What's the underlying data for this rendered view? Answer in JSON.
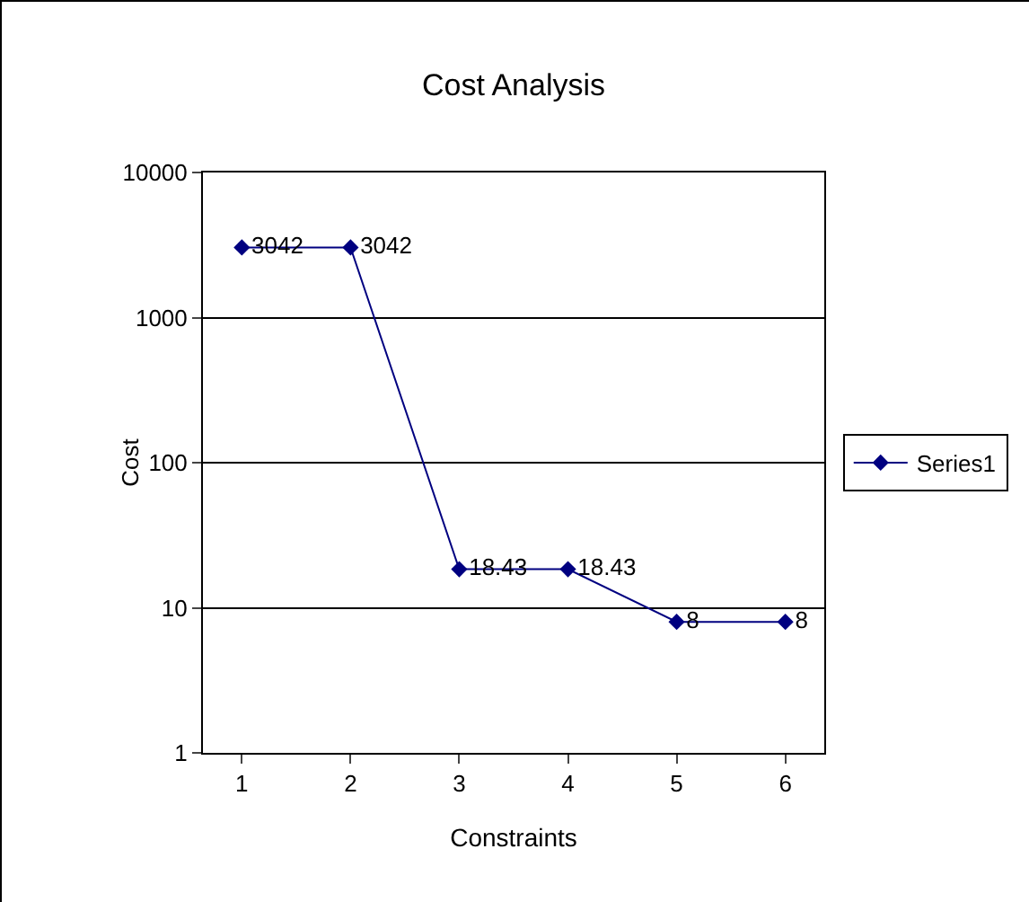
{
  "chart_data": {
    "type": "line",
    "title": "Cost Analysis",
    "xlabel": "Constraints",
    "ylabel": "Cost",
    "categories": [
      "1",
      "2",
      "3",
      "4",
      "5",
      "6"
    ],
    "series": [
      {
        "name": "Series1",
        "color": "#000080",
        "values": [
          3042,
          3042,
          18.43,
          18.43,
          8,
          8
        ]
      }
    ],
    "ylim": [
      1,
      10000
    ],
    "yticks": [
      1,
      10,
      100,
      1000,
      10000
    ],
    "log": true,
    "grid": "y",
    "legend": "right",
    "marker": "diamond",
    "line_style": "solid",
    "data_labels": true
  }
}
